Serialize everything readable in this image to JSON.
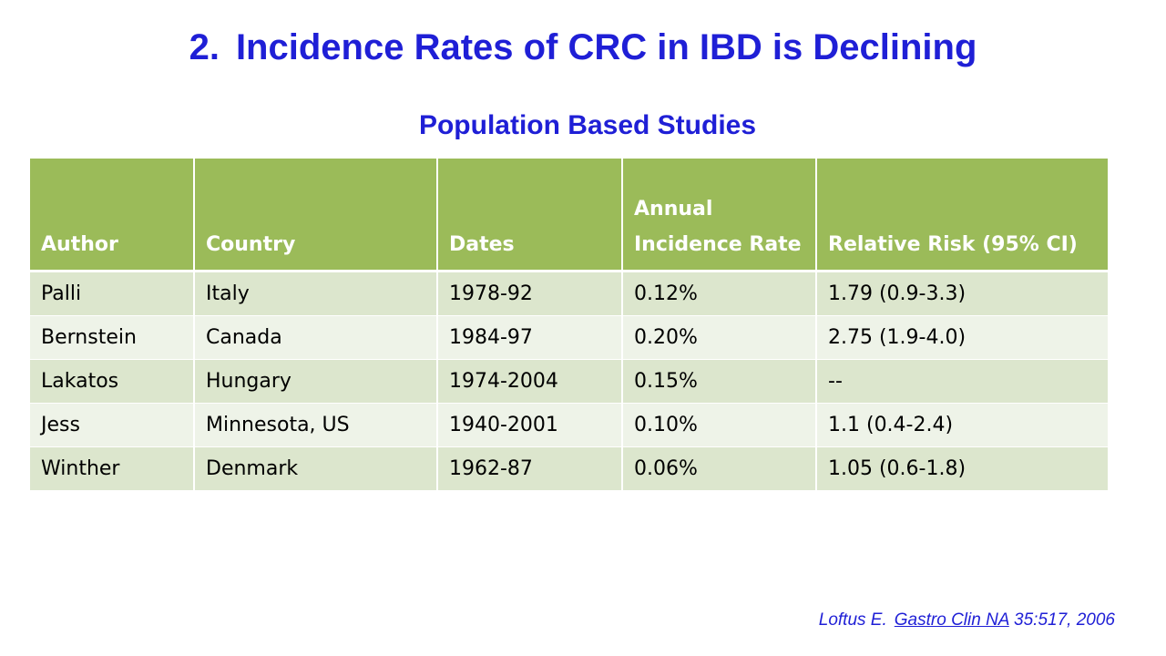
{
  "slide": {
    "number": "2.",
    "title": "Incidence Rates of CRC in IBD is Declining",
    "subtitle": "Population Based Studies"
  },
  "table": {
    "headers": [
      "Author",
      "Country",
      "Dates",
      "Annual Incidence Rate",
      "Relative Risk (95% CI)"
    ],
    "rows": [
      [
        "Palli",
        "Italy",
        "1978-92",
        "0.12%",
        "1.79 (0.9-3.3)"
      ],
      [
        "Bernstein",
        "Canada",
        "1984-97",
        "0.20%",
        "2.75 (1.9-4.0)"
      ],
      [
        "Lakatos",
        "Hungary",
        "1974-2004",
        "0.15%",
        "--"
      ],
      [
        "Jess",
        "Minnesota, US",
        "1940-2001",
        "0.10%",
        "1.1 (0.4-2.4)"
      ],
      [
        "Winther",
        "Denmark",
        "1962-87",
        "0.06%",
        "1.05 (0.6-1.8)"
      ]
    ]
  },
  "citation": {
    "author": "Loftus E.",
    "journal": "Gastro Clin NA",
    "ref": "35:517, 2006"
  },
  "colors": {
    "title": "#1f1fd6",
    "header_bg": "#9bbb59",
    "row_odd": "#dce6cd",
    "row_even": "#eef3e8"
  }
}
